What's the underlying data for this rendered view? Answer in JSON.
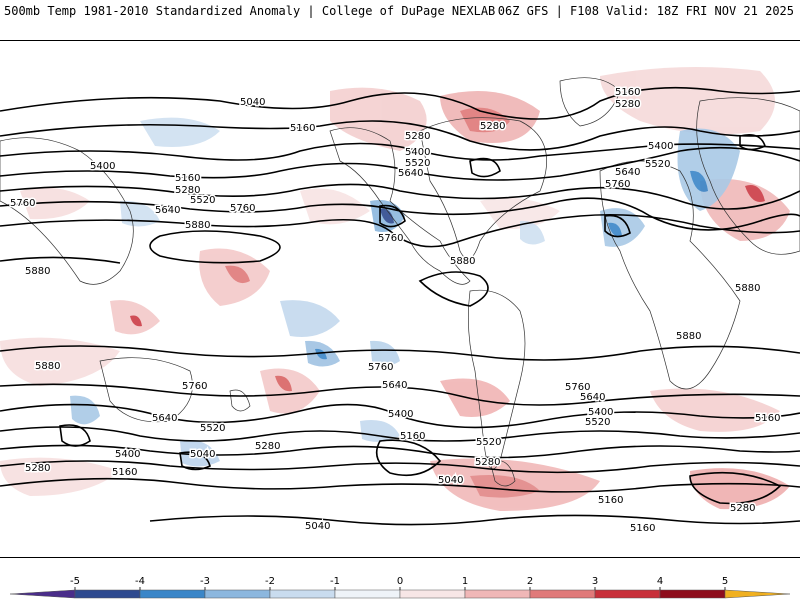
{
  "header": {
    "title_left": "500mb Temp 1981-2010 Standardized Anomaly | College of DuPage NEXLAB",
    "title_right": "06Z GFS | F108 Valid: 18Z FRI NOV 21 2025"
  },
  "map": {
    "contour_labels": [
      "5040",
      "5160",
      "5280",
      "5400",
      "5520",
      "5640",
      "5760",
      "5880"
    ]
  },
  "colorbar": {
    "ticks": [
      "-5",
      "-4",
      "-3",
      "-2",
      "-1",
      "0",
      "1",
      "2",
      "3",
      "4",
      "5"
    ],
    "colors": [
      "#4a2d8a",
      "#2e4a8f",
      "#3a86c8",
      "#8cb7de",
      "#c9dcef",
      "#eef3f8",
      "#f7e6e6",
      "#f0b7b7",
      "#e07a7a",
      "#c8303a",
      "#8e0d1c",
      "#f0b020"
    ]
  }
}
